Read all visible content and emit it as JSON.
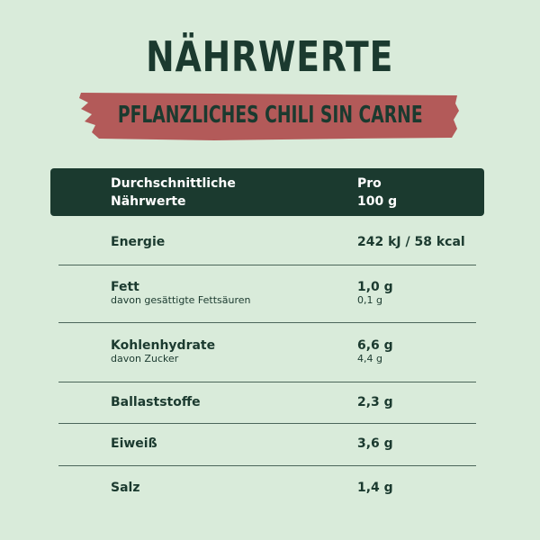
{
  "title": "NÄHRWERTE",
  "subtitle": "PFLANZLICHES CHILI SIN CARNE",
  "colors": {
    "background": "#d9ebda",
    "dark_green": "#1b3a2f",
    "banner_red": "#b35a59"
  },
  "table": {
    "header": {
      "label_line1": "Durchschnittliche",
      "label_line2": "Nährwerte",
      "value_line1": "Pro",
      "value_line2": "100 g"
    },
    "rows": [
      {
        "label": "Energie",
        "value": "242 kJ / 58 kcal"
      },
      {
        "label": "Fett",
        "sublabel": "davon gesättigte Fettsäuren",
        "value": "1,0 g",
        "subvalue": "0,1 g"
      },
      {
        "label": "Kohlenhydrate",
        "sublabel": "davon Zucker",
        "value": "6,6 g",
        "subvalue": "4,4 g"
      },
      {
        "label": "Ballaststoffe",
        "value": "2,3 g"
      },
      {
        "label": "Eiweiß",
        "value": "3,6 g"
      },
      {
        "label": "Salz",
        "value": "1,4 g"
      }
    ]
  }
}
